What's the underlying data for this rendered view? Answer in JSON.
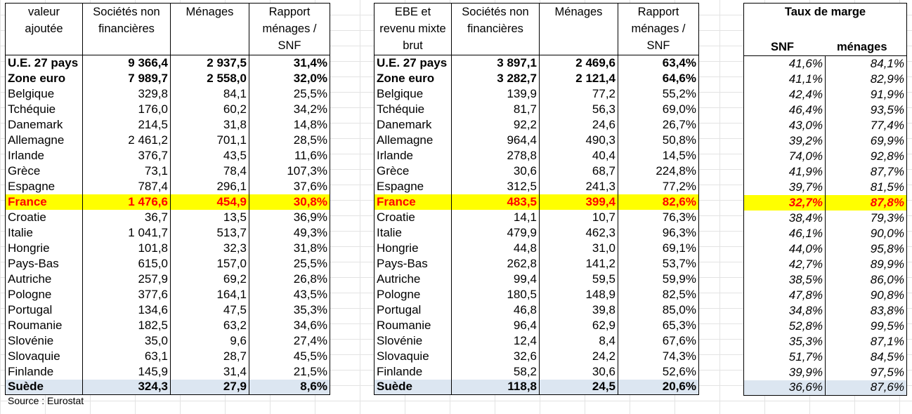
{
  "table_va": {
    "headers": [
      "valeur ajoutée",
      "Sociétés non financières",
      "Ménages",
      "Rapport ménages / SNF"
    ],
    "rows": [
      [
        "U.E. 27 pays",
        "9 366,4",
        "2 937,5",
        "31,4%"
      ],
      [
        "Zone euro",
        "7 989,7",
        "2 558,0",
        "32,0%"
      ],
      [
        "Belgique",
        "329,8",
        "84,1",
        "25,5%"
      ],
      [
        "Tchéquie",
        "176,0",
        "60,2",
        "34,2%"
      ],
      [
        "Danemark",
        "214,5",
        "31,8",
        "14,8%"
      ],
      [
        "Allemagne",
        "2 461,2",
        "701,1",
        "28,5%"
      ],
      [
        "Irlande",
        "376,7",
        "43,5",
        "11,6%"
      ],
      [
        "Grèce",
        "73,1",
        "78,4",
        "107,3%"
      ],
      [
        "Espagne",
        "787,4",
        "296,1",
        "37,6%"
      ],
      [
        "France",
        "1 476,6",
        "454,9",
        "30,8%"
      ],
      [
        "Croatie",
        "36,7",
        "13,5",
        "36,9%"
      ],
      [
        "Italie",
        "1 041,7",
        "513,7",
        "49,3%"
      ],
      [
        "Hongrie",
        "101,8",
        "32,3",
        "31,8%"
      ],
      [
        "Pays-Bas",
        "615,0",
        "157,0",
        "25,5%"
      ],
      [
        "Autriche",
        "257,9",
        "69,2",
        "26,8%"
      ],
      [
        "Pologne",
        "377,6",
        "164,1",
        "43,5%"
      ],
      [
        "Portugal",
        "134,6",
        "47,5",
        "35,3%"
      ],
      [
        "Roumanie",
        "182,5",
        "63,2",
        "34,6%"
      ],
      [
        "Slovénie",
        "35,0",
        "9,6",
        "27,4%"
      ],
      [
        "Slovaquie",
        "63,1",
        "28,7",
        "45,5%"
      ],
      [
        "Finlande",
        "145,9",
        "31,4",
        "21,5%"
      ],
      [
        "Suède",
        "324,3",
        "27,9",
        "8,6%"
      ]
    ]
  },
  "table_ebe": {
    "headers": [
      "EBE et revenu mixte brut",
      "Sociétés non financières",
      "Ménages",
      "Rapport ménages / SNF"
    ],
    "rows": [
      [
        "U.E. 27 pays",
        "3 897,1",
        "2 469,6",
        "63,4%"
      ],
      [
        "Zone euro",
        "3 282,7",
        "2 121,4",
        "64,6%"
      ],
      [
        "Belgique",
        "139,9",
        "77,2",
        "55,2%"
      ],
      [
        "Tchéquie",
        "81,7",
        "56,3",
        "69,0%"
      ],
      [
        "Danemark",
        "92,2",
        "24,6",
        "26,7%"
      ],
      [
        "Allemagne",
        "964,4",
        "490,3",
        "50,8%"
      ],
      [
        "Irlande",
        "278,8",
        "40,4",
        "14,5%"
      ],
      [
        "Grèce",
        "30,6",
        "68,7",
        "224,8%"
      ],
      [
        "Espagne",
        "312,5",
        "241,3",
        "77,2%"
      ],
      [
        "France",
        "483,5",
        "399,4",
        "82,6%"
      ],
      [
        "Croatie",
        "14,1",
        "10,7",
        "76,3%"
      ],
      [
        "Italie",
        "479,9",
        "462,3",
        "96,3%"
      ],
      [
        "Hongrie",
        "44,8",
        "31,0",
        "69,1%"
      ],
      [
        "Pays-Bas",
        "262,8",
        "141,2",
        "53,7%"
      ],
      [
        "Autriche",
        "99,4",
        "59,5",
        "59,9%"
      ],
      [
        "Pologne",
        "180,5",
        "148,9",
        "82,5%"
      ],
      [
        "Portugal",
        "46,8",
        "39,8",
        "85,0%"
      ],
      [
        "Roumanie",
        "96,4",
        "62,9",
        "65,3%"
      ],
      [
        "Slovénie",
        "12,4",
        "8,4",
        "67,6%"
      ],
      [
        "Slovaquie",
        "32,6",
        "24,2",
        "74,3%"
      ],
      [
        "Finlande",
        "58,2",
        "30,6",
        "52,6%"
      ],
      [
        "Suède",
        "118,8",
        "24,5",
        "20,6%"
      ]
    ]
  },
  "table_tm": {
    "title": "Taux de marge",
    "headers": [
      "SNF",
      "ménages"
    ],
    "rows": [
      [
        "41,6%",
        "84,1%"
      ],
      [
        "41,1%",
        "82,9%"
      ],
      [
        "42,4%",
        "91,9%"
      ],
      [
        "46,4%",
        "93,5%"
      ],
      [
        "43,0%",
        "77,4%"
      ],
      [
        "39,2%",
        "69,9%"
      ],
      [
        "74,0%",
        "92,8%"
      ],
      [
        "41,9%",
        "87,7%"
      ],
      [
        "39,7%",
        "81,5%"
      ],
      [
        "32,7%",
        "87,8%"
      ],
      [
        "38,4%",
        "79,3%"
      ],
      [
        "46,1%",
        "90,0%"
      ],
      [
        "44,0%",
        "95,8%"
      ],
      [
        "42,7%",
        "89,9%"
      ],
      [
        "38,5%",
        "86,0%"
      ],
      [
        "47,8%",
        "90,8%"
      ],
      [
        "34,8%",
        "83,8%"
      ],
      [
        "52,8%",
        "99,5%"
      ],
      [
        "35,3%",
        "87,1%"
      ],
      [
        "51,7%",
        "84,5%"
      ],
      [
        "39,9%",
        "97,5%"
      ],
      [
        "36,6%",
        "87,6%"
      ]
    ]
  },
  "source": "Source : Eurostat",
  "colors": {
    "highlight_bg": "#ffff00",
    "highlight_text": "#ff0000",
    "last_row_bg": "#dce6f1"
  }
}
